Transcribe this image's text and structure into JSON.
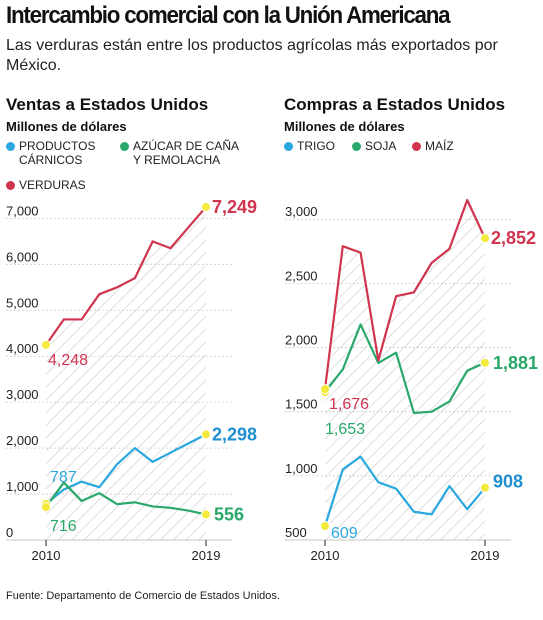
{
  "header": {
    "title": "Intercambio comercial con la Unión Americana",
    "subtitle": "Las verduras están entre los productos agrícolas más exportados por México."
  },
  "source": "Fuente: Departamento de Comercio de Estados Unidos.",
  "colors": {
    "blue": "#29a8e0",
    "green": "#2aa86a",
    "red": "#d0344f",
    "marker": "#f4ea3c",
    "hatch": "#c9c9c9",
    "axis": "#222222"
  },
  "panels": [
    {
      "title": "Ventas a Estados Unidos",
      "unit": "Millones de dólares",
      "legend": [
        {
          "lines": [
            "PRODUCTOS",
            "CÁRNICOS"
          ],
          "color": "#29a8e0"
        },
        {
          "lines": [
            "AZÚCAR DE CAÑA",
            "Y REMOLACHA"
          ],
          "color": "#2aa86a"
        },
        {
          "lines": [
            "VERDURAS"
          ],
          "color": "#d0344f"
        }
      ]
    },
    {
      "title": "Compras a Estados Unidos",
      "unit": "Millones de dólares",
      "legend": [
        {
          "lines": [
            "TRIGO"
          ],
          "color": "#29a8e0"
        },
        {
          "lines": [
            "SOJA"
          ],
          "color": "#2aa86a"
        },
        {
          "lines": [
            "MAÍZ"
          ],
          "color": "#d0344f"
        }
      ]
    }
  ],
  "chart_data": [
    {
      "type": "line",
      "title": "Ventas a Estados Unidos",
      "ylabel": "Millones de dólares",
      "x": [
        2010,
        2011,
        2012,
        2013,
        2014,
        2015,
        2016,
        2017,
        2018,
        2019
      ],
      "xticks": [
        "2010",
        "2019"
      ],
      "yticks": [
        0,
        1000,
        2000,
        3000,
        4000,
        5000,
        6000,
        7000
      ],
      "ytick_labels": [
        "0",
        "1,000",
        "2,000",
        "3,000",
        "4,000",
        "5,000",
        "6,000",
        "7,000"
      ],
      "ylim": [
        0,
        7400
      ],
      "series": [
        {
          "name": "PRODUCTOS CÁRNICOS",
          "color": "#29a8e0",
          "values": [
            787,
            1100,
            1270,
            1150,
            1650,
            2000,
            1700,
            1900,
            2100,
            2298
          ]
        },
        {
          "name": "AZÚCAR DE CAÑA Y REMOLACHA",
          "color": "#2aa86a",
          "values": [
            716,
            1250,
            850,
            1020,
            780,
            820,
            730,
            700,
            640,
            556
          ]
        },
        {
          "name": "VERDURAS",
          "color": "#d0344f",
          "values": [
            4248,
            4800,
            4800,
            5350,
            5500,
            5700,
            6500,
            6350,
            6800,
            7249
          ]
        }
      ],
      "labels": [
        {
          "text": "7,249",
          "series": 2,
          "point": "end",
          "style": "big"
        },
        {
          "text": "4,248",
          "series": 2,
          "point": "start",
          "style": "small"
        },
        {
          "text": "2,298",
          "series": 0,
          "point": "end",
          "style": "big"
        },
        {
          "text": "787",
          "series": 0,
          "point": "start",
          "style": "small"
        },
        {
          "text": "716",
          "series": 1,
          "point": "start",
          "style": "small"
        },
        {
          "text": "556",
          "series": 1,
          "point": "end",
          "style": "big"
        }
      ]
    },
    {
      "type": "line",
      "title": "Compras a Estados Unidos",
      "ylabel": "Millones de dólares",
      "x": [
        2010,
        2011,
        2012,
        2013,
        2014,
        2015,
        2016,
        2017,
        2018,
        2019
      ],
      "xticks": [
        "2010",
        "2019"
      ],
      "yticks": [
        500,
        1000,
        1500,
        2000,
        2500,
        3000
      ],
      "ytick_labels": [
        "500",
        "1,000",
        "1,500",
        "2,000",
        "2,500",
        "3,000"
      ],
      "ylim": [
        500,
        3150
      ],
      "series": [
        {
          "name": "TRIGO",
          "color": "#29a8e0",
          "values": [
            609,
            1050,
            1150,
            950,
            900,
            720,
            700,
            920,
            740,
            908
          ]
        },
        {
          "name": "SOJA",
          "color": "#2aa86a",
          "values": [
            1653,
            1830,
            2180,
            1880,
            1960,
            1490,
            1500,
            1580,
            1820,
            1881
          ]
        },
        {
          "name": "MAÍZ",
          "color": "#d0344f",
          "values": [
            1676,
            2790,
            2740,
            1900,
            2400,
            2430,
            2660,
            2770,
            3150,
            2852
          ]
        }
      ],
      "labels": [
        {
          "text": "2,852",
          "series": 2,
          "point": "end",
          "style": "big"
        },
        {
          "text": "1,881",
          "series": 1,
          "point": "end",
          "style": "big"
        },
        {
          "text": "1,676",
          "series": 2,
          "point": "start",
          "style": "small"
        },
        {
          "text": "1,653",
          "series": 1,
          "point": "start",
          "style": "small"
        },
        {
          "text": "908",
          "series": 0,
          "point": "end",
          "style": "big"
        },
        {
          "text": "609",
          "series": 0,
          "point": "start",
          "style": "small"
        }
      ]
    }
  ]
}
